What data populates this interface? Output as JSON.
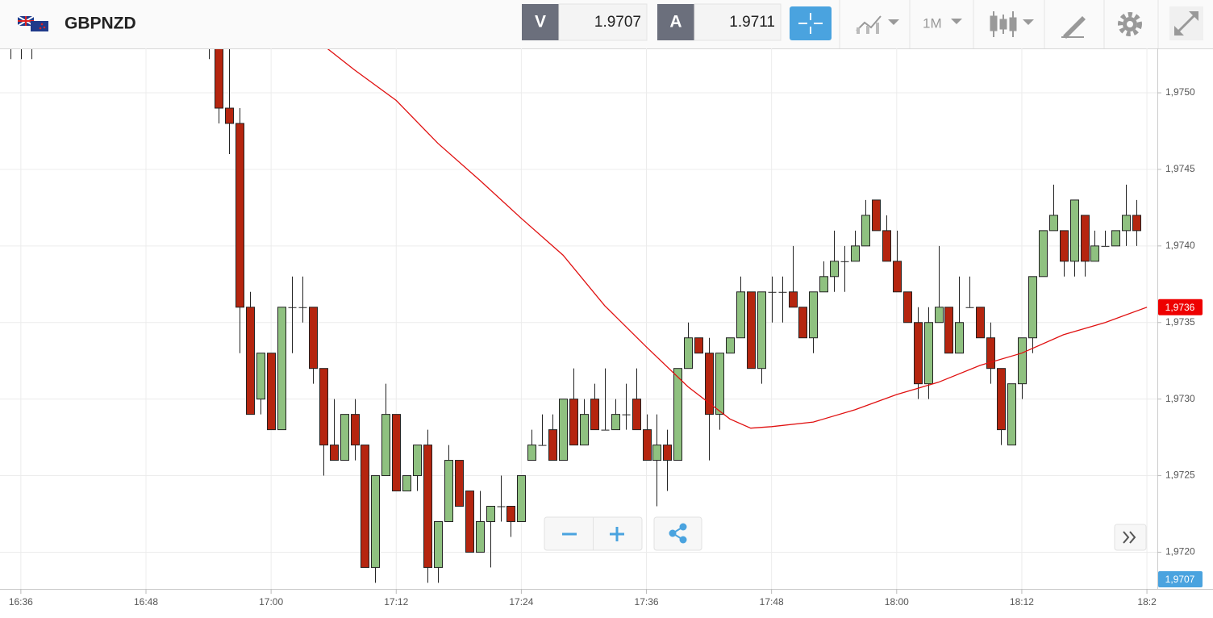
{
  "toolbar": {
    "symbol": "GBPNZD",
    "sell_label": "V",
    "sell_price": 1.9707,
    "buy_label": "A",
    "buy_price": 1.9711,
    "timeframe": "1M"
  },
  "chart_data": {
    "type": "candlestick",
    "up_color": "#8fc180",
    "down_color": "#b5250f",
    "x": [
      "16:35",
      "16:36",
      "16:37",
      "16:54",
      "16:55",
      "16:56",
      "16:57",
      "16:58",
      "16:59",
      "17:00",
      "17:01",
      "17:02",
      "17:03",
      "17:04",
      "17:05",
      "17:06",
      "17:07",
      "17:08",
      "17:09",
      "17:10",
      "17:11",
      "17:12",
      "17:13",
      "17:14",
      "17:15",
      "17:16",
      "17:17",
      "17:18",
      "17:19",
      "17:20",
      "17:21",
      "17:22",
      "17:23",
      "17:24",
      "17:25",
      "17:26",
      "17:27",
      "17:28",
      "17:29",
      "17:30",
      "17:31",
      "17:32",
      "17:33",
      "17:34",
      "17:35",
      "17:36",
      "17:37",
      "17:38",
      "17:39",
      "17:40",
      "17:41",
      "17:42",
      "17:43",
      "17:44",
      "17:45",
      "17:46",
      "17:47",
      "17:48",
      "17:49",
      "17:50",
      "17:51",
      "17:52",
      "17:53",
      "17:54",
      "17:55",
      "17:56",
      "17:57",
      "17:58",
      "17:59",
      "18:00",
      "18:01",
      "18:02",
      "18:03",
      "18:04",
      "18:05",
      "18:06",
      "18:07",
      "18:08",
      "18:09",
      "18:10",
      "18:11",
      "18:12",
      "18:13",
      "18:14",
      "18:15",
      "18:16",
      "18:17",
      "18:18",
      "18:19",
      "18:20",
      "18:21",
      "18:22",
      "18:23"
    ],
    "open": [
      1.9754,
      1.9754,
      1.9754,
      1.9754,
      1.9753,
      1.9749,
      1.9748,
      1.9736,
      1.973,
      1.9733,
      1.9728,
      1.9736,
      1.9736,
      1.9736,
      1.9732,
      1.9727,
      1.9726,
      1.9729,
      1.9727,
      1.9719,
      1.9725,
      1.9729,
      1.9724,
      1.9725,
      1.9727,
      1.9719,
      1.9722,
      1.9726,
      1.9724,
      1.972,
      1.9722,
      1.9723,
      1.9723,
      1.9722,
      1.9726,
      1.9727,
      1.9728,
      1.9726,
      1.973,
      1.9727,
      1.973,
      1.9728,
      1.9728,
      1.9729,
      1.973,
      1.9728,
      1.9726,
      1.9727,
      1.9726,
      1.9732,
      1.9734,
      1.9733,
      1.9729,
      1.9733,
      1.9734,
      1.9737,
      1.9732,
      1.9737,
      1.9737,
      1.9737,
      1.9736,
      1.9734,
      1.9737,
      1.9738,
      1.9739,
      1.9739,
      1.974,
      1.9743,
      1.9741,
      1.9739,
      1.9737,
      1.9735,
      1.9731,
      1.9735,
      1.9736,
      1.9733,
      1.9736,
      1.9736,
      1.9734,
      1.9732,
      1.9727,
      1.9731,
      1.9734,
      1.9738,
      1.9741,
      1.9741,
      1.9739,
      1.9742,
      1.9739,
      1.974,
      1.974,
      1.9741,
      1.9742
    ],
    "high": [
      1.9755,
      1.9755,
      1.9755,
      1.9755,
      1.9754,
      1.9753,
      1.9749,
      1.9737,
      1.9733,
      1.9733,
      1.9736,
      1.9738,
      1.9738,
      1.9736,
      1.9732,
      1.973,
      1.9729,
      1.973,
      1.9727,
      1.9725,
      1.9731,
      1.9729,
      1.9725,
      1.9727,
      1.9728,
      1.9722,
      1.9727,
      1.9726,
      1.9724,
      1.9724,
      1.9723,
      1.9725,
      1.9723,
      1.9725,
      1.9728,
      1.9729,
      1.9729,
      1.973,
      1.9732,
      1.973,
      1.9731,
      1.9732,
      1.973,
      1.9731,
      1.9732,
      1.9729,
      1.9729,
      1.9728,
      1.9732,
      1.9735,
      1.9734,
      1.9734,
      1.9733,
      1.9734,
      1.9738,
      1.9737,
      1.9737,
      1.9738,
      1.9738,
      1.974,
      1.9736,
      1.9737,
      1.9739,
      1.9741,
      1.974,
      1.9741,
      1.9743,
      1.9743,
      1.9742,
      1.9741,
      1.9737,
      1.9736,
      1.9736,
      1.974,
      1.9736,
      1.9738,
      1.9738,
      1.9736,
      1.9735,
      1.9732,
      1.9731,
      1.9734,
      1.9738,
      1.9741,
      1.9744,
      1.9741,
      1.9743,
      1.9742,
      1.9741,
      1.9741,
      1.9741,
      1.9744,
      1.9743
    ],
    "low": [
      1.97522,
      1.97522,
      1.97522,
      1.97522,
      1.9748,
      1.9746,
      1.9733,
      1.9729,
      1.9729,
      1.9728,
      1.9728,
      1.9733,
      1.9735,
      1.9731,
      1.9725,
      1.9726,
      1.9726,
      1.9726,
      1.9719,
      1.9718,
      1.9725,
      1.9724,
      1.9724,
      1.9724,
      1.9718,
      1.9718,
      1.9722,
      1.9723,
      1.972,
      1.972,
      1.9719,
      1.9722,
      1.9721,
      1.9722,
      1.9726,
      1.9727,
      1.9726,
      1.9726,
      1.9727,
      1.9727,
      1.9728,
      1.9728,
      1.9728,
      1.9728,
      1.9728,
      1.9726,
      1.9723,
      1.9724,
      1.9726,
      1.9732,
      1.9733,
      1.9726,
      1.9728,
      1.9733,
      1.9734,
      1.9732,
      1.9731,
      1.9735,
      1.9735,
      1.9736,
      1.9734,
      1.9733,
      1.9737,
      1.9737,
      1.9737,
      1.9739,
      1.974,
      1.9741,
      1.9739,
      1.9737,
      1.9735,
      1.973,
      1.973,
      1.9735,
      1.9733,
      1.9733,
      1.9736,
      1.9734,
      1.9731,
      1.9727,
      1.9727,
      1.973,
      1.9733,
      1.9738,
      1.9741,
      1.9738,
      1.9738,
      1.9738,
      1.9739,
      1.974,
      1.974,
      1.974,
      1.974
    ],
    "close": [
      1.97535,
      1.97535,
      1.97535,
      1.97535,
      1.9749,
      1.9748,
      1.9736,
      1.9729,
      1.9733,
      1.9728,
      1.9736,
      1.9736,
      1.9736,
      1.9732,
      1.9727,
      1.9726,
      1.9729,
      1.9727,
      1.9719,
      1.9725,
      1.9729,
      1.9724,
      1.9725,
      1.9727,
      1.9719,
      1.9722,
      1.9726,
      1.9723,
      1.972,
      1.9722,
      1.9723,
      1.9723,
      1.9722,
      1.9725,
      1.9727,
      1.9727,
      1.9726,
      1.973,
      1.9727,
      1.9729,
      1.9728,
      1.9728,
      1.9729,
      1.9729,
      1.9728,
      1.9726,
      1.9727,
      1.9726,
      1.9732,
      1.9734,
      1.9733,
      1.9729,
      1.9733,
      1.9734,
      1.9737,
      1.9732,
      1.9737,
      1.9737,
      1.9737,
      1.9736,
      1.9734,
      1.9737,
      1.9738,
      1.9739,
      1.9739,
      1.974,
      1.9742,
      1.9741,
      1.9739,
      1.9737,
      1.9735,
      1.9731,
      1.9735,
      1.9736,
      1.9733,
      1.9735,
      1.9736,
      1.9734,
      1.9732,
      1.9728,
      1.9731,
      1.9734,
      1.9738,
      1.9741,
      1.9742,
      1.9739,
      1.9743,
      1.9739,
      1.974,
      1.974,
      1.9741,
      1.9742,
      1.9741
    ],
    "moving_average": {
      "color": "#e01010",
      "x": [
        "17:05",
        "17:08",
        "17:12",
        "17:16",
        "17:20",
        "17:24",
        "17:28",
        "17:32",
        "17:36",
        "17:40",
        "17:44",
        "17:46",
        "17:48",
        "17:52",
        "17:56",
        "18:00",
        "18:04",
        "18:08",
        "18:12",
        "18:16",
        "18:20",
        "18:24"
      ],
      "values": [
        1.97531,
        1.97515,
        1.97495,
        1.97467,
        1.97443,
        1.97418,
        1.97394,
        1.97361,
        1.97334,
        1.97308,
        1.97287,
        1.97281,
        1.97282,
        1.97285,
        1.97293,
        1.97303,
        1.97311,
        1.97322,
        1.9733,
        1.97342,
        1.9735,
        1.9736
      ]
    },
    "price_markers": [
      {
        "value": 1.9736,
        "label": "1,9736",
        "color": "#ee0000"
      },
      {
        "value": 1.9707,
        "label": "1,9707",
        "color": "#4aa3df"
      }
    ],
    "xlim": [
      "16:34",
      "18:25"
    ],
    "xticks": [
      "16:36",
      "16:48",
      "17:00",
      "17:12",
      "17:24",
      "17:36",
      "17:48",
      "18:00",
      "18:12",
      {
        "value": "18:24",
        "label": "18:2"
      }
    ],
    "ylim": [
      1.97176,
      1.97529
    ],
    "yticks": [
      {
        "value": 1.972,
        "label": "1,9720"
      },
      {
        "value": 1.9725,
        "label": "1,9725"
      },
      {
        "value": 1.973,
        "label": "1,9730"
      },
      {
        "value": 1.9735,
        "label": "1,9735"
      },
      {
        "value": 1.974,
        "label": "1,9740"
      },
      {
        "value": 1.9745,
        "label": "1,9745"
      },
      {
        "value": 1.975,
        "label": "1,9750"
      }
    ],
    "grid": true
  }
}
